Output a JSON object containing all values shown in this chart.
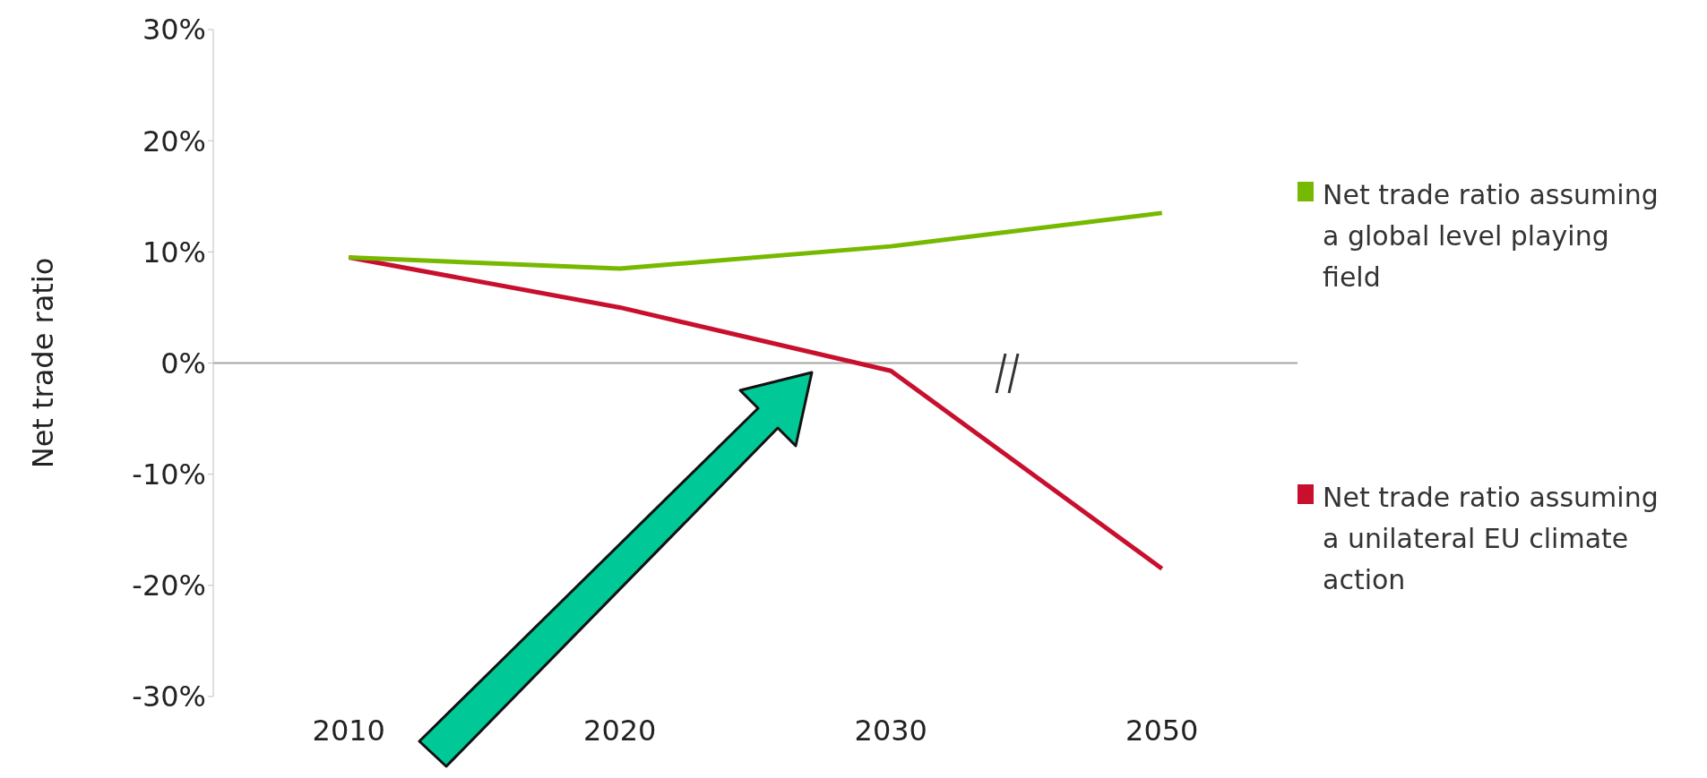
{
  "chart_data": {
    "type": "line",
    "ylabel": "Net trade ratio",
    "categories": [
      "2010",
      "2020",
      "2030",
      "2050"
    ],
    "series": [
      {
        "name": "Net trade ratio assuming a global level playing field",
        "color": "#76b900",
        "values": [
          9.5,
          8.5,
          10.5,
          13.5
        ]
      },
      {
        "name": "Net trade ratio assuming a unilateral EU climate action",
        "color": "#c8102e",
        "values": [
          9.5,
          5,
          -0.7,
          -18.5
        ]
      }
    ],
    "ylim": [
      -30,
      30
    ],
    "yticks": [
      {
        "value": -30,
        "label": "-30%"
      },
      {
        "value": -20,
        "label": "-20%"
      },
      {
        "value": -10,
        "label": "-10%"
      },
      {
        "value": 0,
        "label": "0%"
      },
      {
        "value": 10,
        "label": "10%"
      },
      {
        "value": 20,
        "label": "20%"
      },
      {
        "value": 30,
        "label": "30%"
      }
    ],
    "ref_lines": [
      {
        "axis": "y",
        "value": 0,
        "color": "#a6a6a6"
      }
    ],
    "grid": false,
    "legend": "right"
  }
}
